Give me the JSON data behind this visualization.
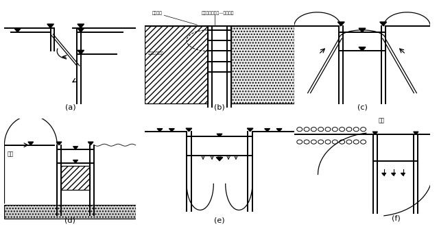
{
  "background": "#ffffff",
  "labels": {
    "a": "(a)",
    "b": "(b)",
    "c": "(c)",
    "d": "(d)",
    "e": "(e)",
    "f": "(f)"
  },
  "text_b_top1": "形成空洞",
  "text_b_top2": "墙体向地面细扁—一体移动",
  "text_b_left": "由接缝向坑内渗履",
  "text_d_left": "河道",
  "text_f_top": "案例",
  "lw": 0.9,
  "lw2": 1.4
}
